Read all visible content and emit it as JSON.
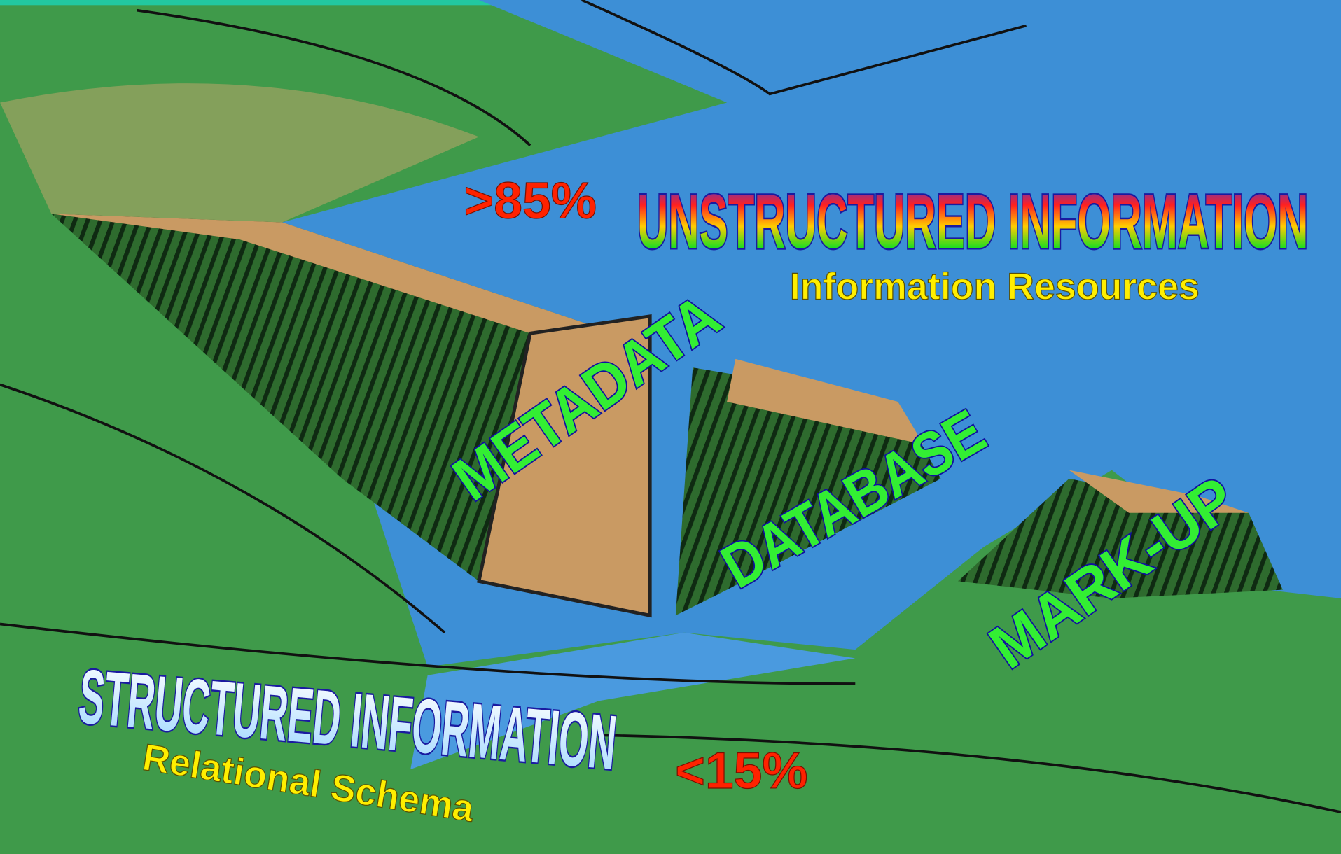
{
  "illustration": {
    "unstructured": {
      "percent": ">85%",
      "title": "UNSTRUCTURED INFORMATION",
      "subtitle": "Information Resources"
    },
    "dams": [
      "METADATA",
      "DATABASE",
      "MARK-UP"
    ],
    "structured": {
      "title": "STRUCTURED INFORMATION",
      "subtitle": "Relational Schema",
      "percent": "<15%"
    }
  }
}
